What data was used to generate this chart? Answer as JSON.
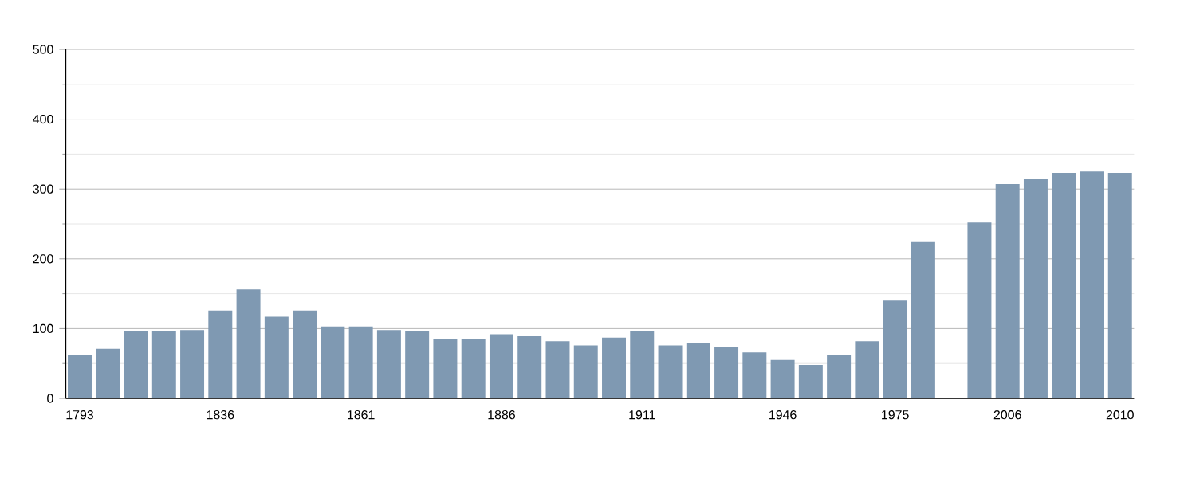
{
  "chart_data": {
    "type": "bar",
    "categories": [
      "1793",
      null,
      null,
      null,
      null,
      "1836",
      null,
      null,
      null,
      null,
      "1861",
      null,
      null,
      null,
      null,
      "1886",
      null,
      null,
      null,
      null,
      "1911",
      null,
      null,
      null,
      null,
      "1946",
      null,
      null,
      null,
      "1975",
      null,
      null,
      null,
      "2006",
      null,
      null,
      null,
      "2010"
    ],
    "values": [
      62,
      71,
      96,
      96,
      98,
      126,
      156,
      117,
      126,
      103,
      103,
      98,
      96,
      85,
      85,
      92,
      89,
      82,
      76,
      87,
      96,
      76,
      80,
      73,
      66,
      55,
      48,
      62,
      82,
      140,
      224,
      null,
      252,
      307,
      314,
      323,
      325,
      323
    ],
    "color": "#7f99b2",
    "ylim": [
      0,
      500
    ],
    "yticks": [
      0,
      {
        "value": 50,
        "label": null
      },
      100,
      {
        "value": 150,
        "label": null
      },
      200,
      {
        "value": 250,
        "label": null
      },
      300,
      {
        "value": 350,
        "label": null
      },
      400,
      {
        "value": 450,
        "label": null
      },
      500
    ],
    "grid": "y"
  }
}
